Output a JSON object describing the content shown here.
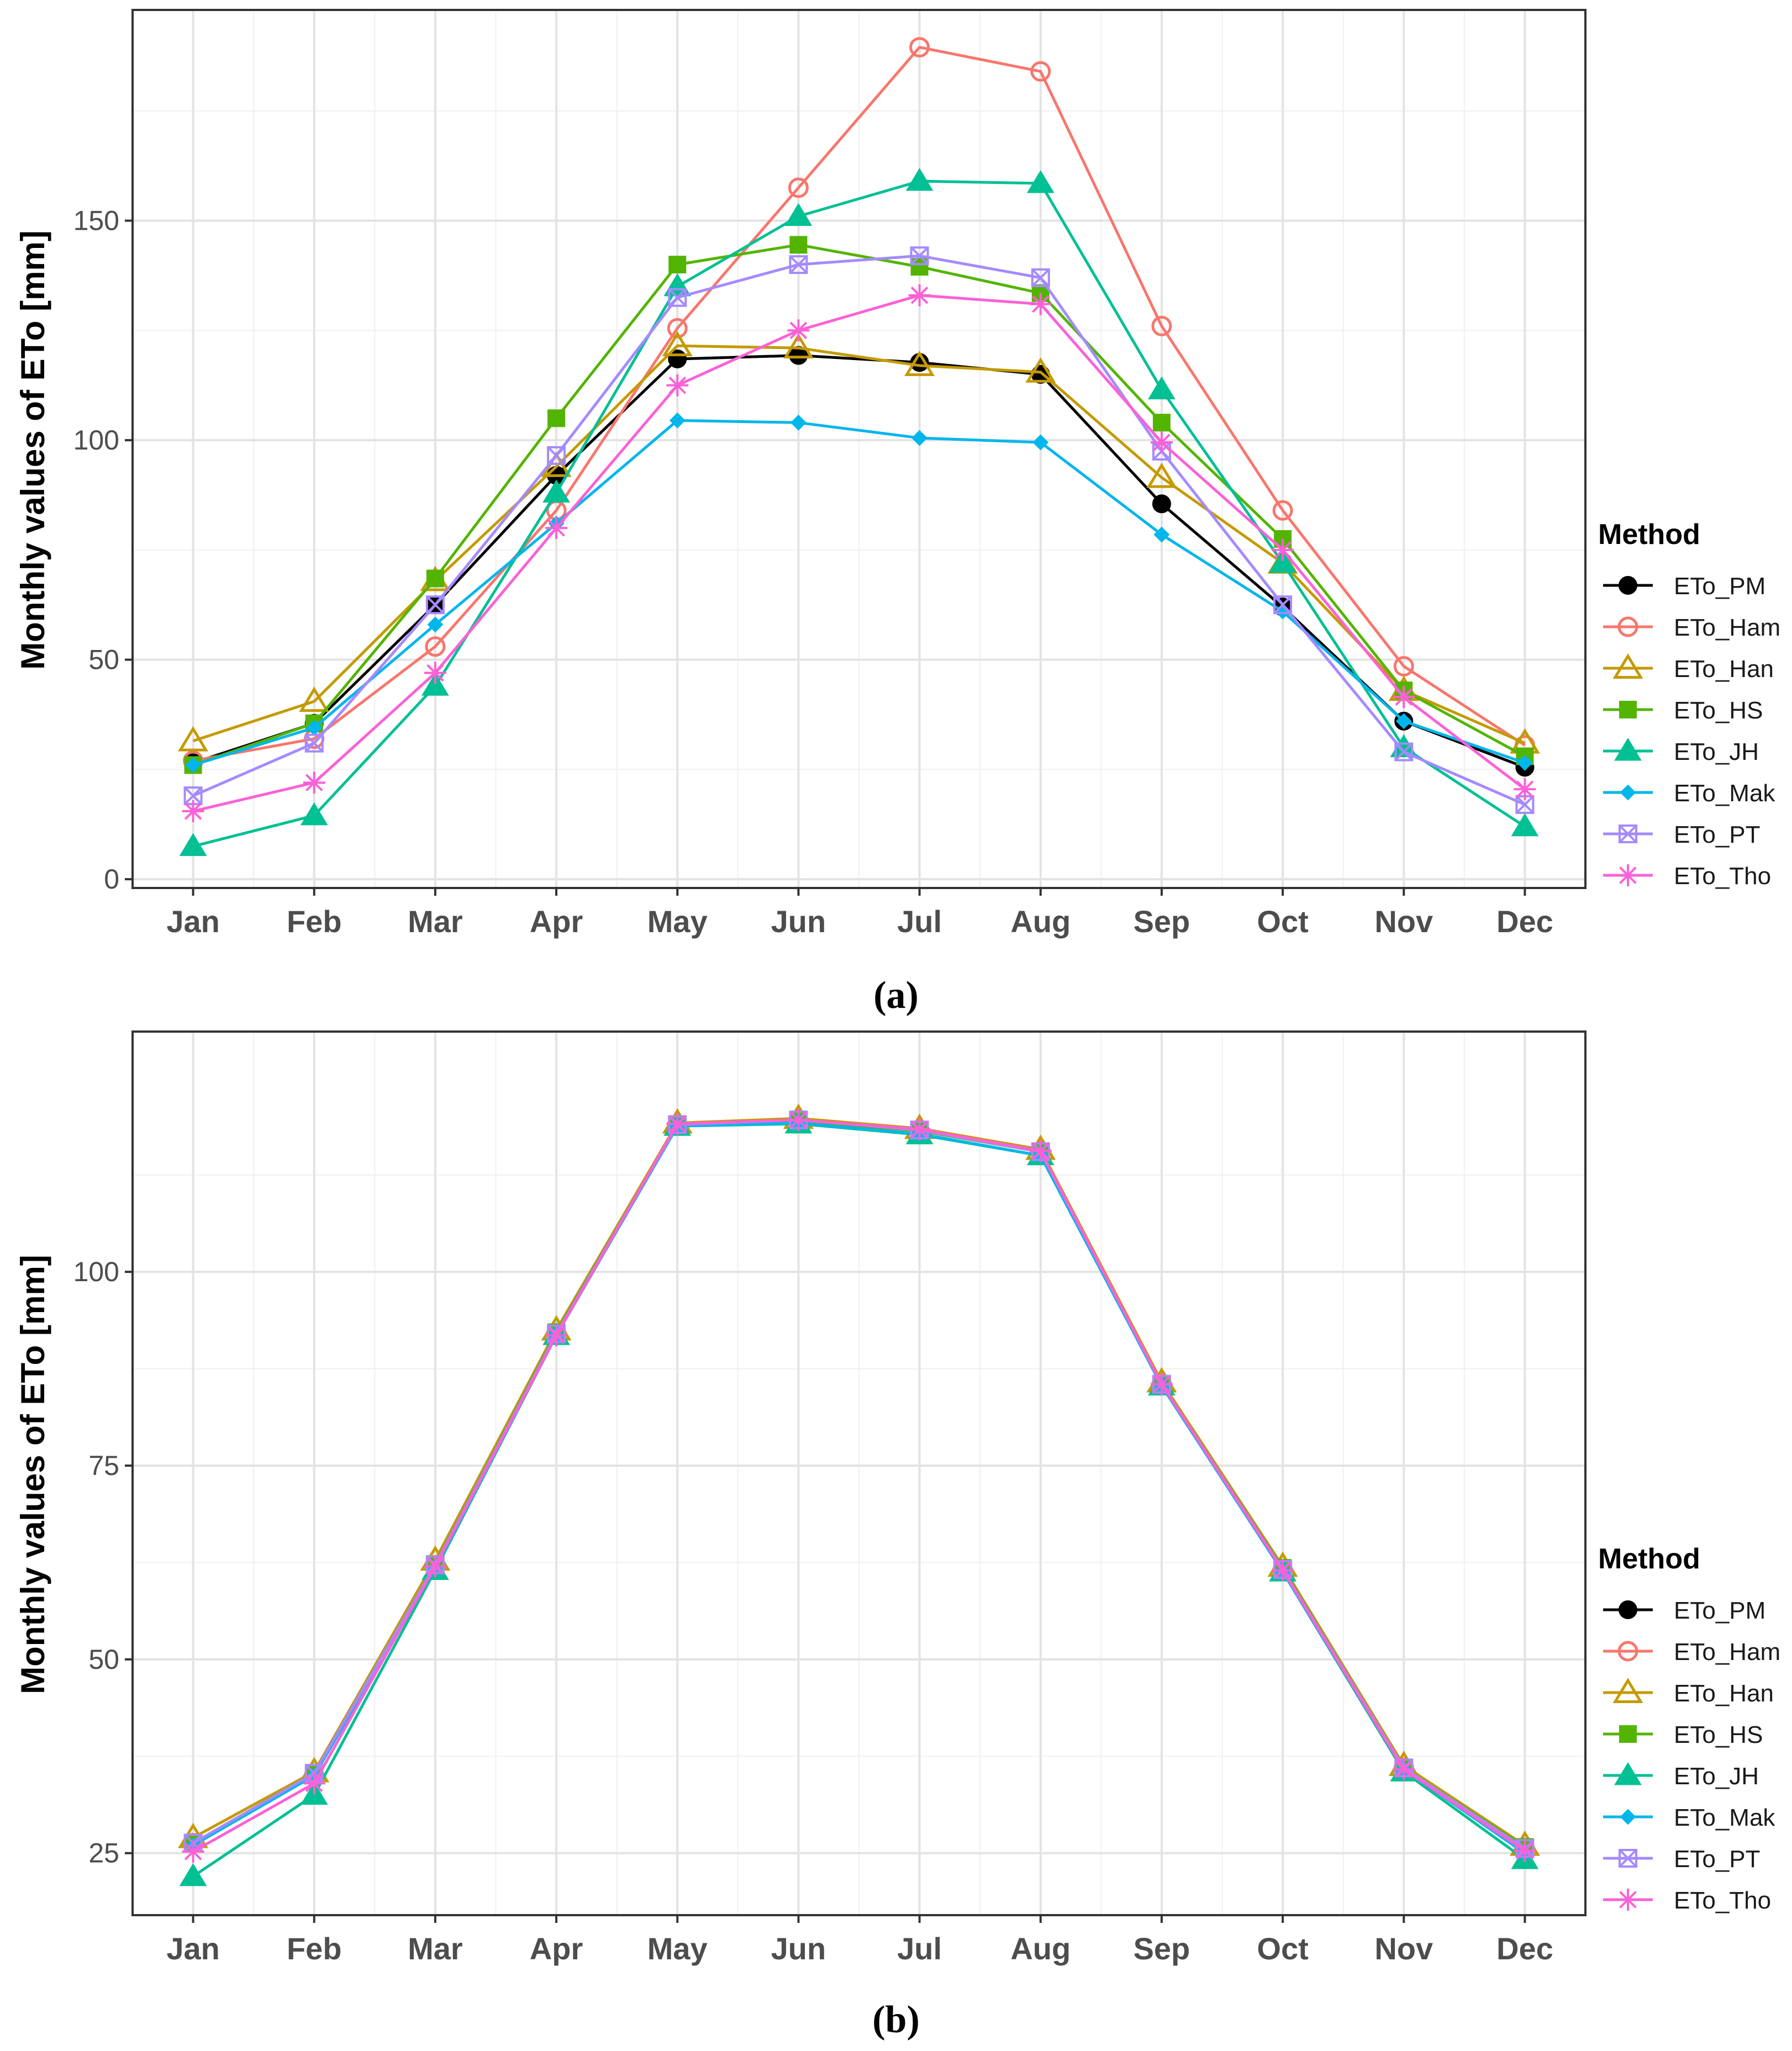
{
  "method_legend_title": "Method",
  "chart_data": [
    {
      "type": "line",
      "caption": "(a)",
      "ylabel": "Monthly values of ETo [mm]",
      "categories": [
        "Jan",
        "Feb",
        "Mar",
        "Apr",
        "May",
        "Jun",
        "Jul",
        "Aug",
        "Sep",
        "Oct",
        "Nov",
        "Dec"
      ],
      "ylim": [
        -2,
        198
      ],
      "yticks": [
        0,
        50,
        100,
        150
      ],
      "grid": true,
      "legend_position": "right",
      "legend_title": "Method",
      "series": [
        {
          "name": "ETo_PM",
          "color": "#000000",
          "marker": "circle-filled",
          "values": [
            26.5,
            35.5,
            62.5,
            92,
            118.5,
            119.3,
            117.7,
            115,
            85.5,
            62,
            36,
            25.5
          ]
        },
        {
          "name": "ETo_Ham",
          "color": "#F8766D",
          "marker": "circle-open",
          "values": [
            27,
            32,
            53,
            84,
            125.5,
            157.5,
            189.5,
            184,
            126,
            84,
            48.5,
            30.5
          ]
        },
        {
          "name": "ETo_Han",
          "color": "#C49A00",
          "marker": "triangle-open",
          "values": [
            31.5,
            40.5,
            68,
            94,
            121.5,
            121,
            117,
            115.5,
            91.5,
            72,
            43,
            31
          ]
        },
        {
          "name": "ETo_HS",
          "color": "#53B400",
          "marker": "square-filled",
          "values": [
            26,
            35.5,
            68.5,
            105,
            140,
            144.5,
            139.5,
            133.5,
            104,
            77.5,
            43,
            28
          ]
        },
        {
          "name": "ETo_JH",
          "color": "#00C094",
          "marker": "triangle-filled",
          "values": [
            7.5,
            14.5,
            44,
            88,
            135,
            151,
            159,
            158.5,
            111.5,
            72,
            30,
            12
          ]
        },
        {
          "name": "ETo_Mak",
          "color": "#00B6EB",
          "marker": "diamond-filled",
          "values": [
            26,
            34.5,
            58,
            81,
            104.5,
            104,
            100.5,
            99.5,
            78.5,
            61,
            36,
            26.5
          ]
        },
        {
          "name": "ETo_PT",
          "color": "#A58AFF",
          "marker": "square-cross",
          "values": [
            19,
            31,
            62.5,
            96.5,
            132.5,
            140,
            142,
            137,
            97.5,
            62.5,
            29,
            17
          ]
        },
        {
          "name": "ETo_Tho",
          "color": "#FB61D7",
          "marker": "asterisk",
          "values": [
            15.5,
            22,
            47,
            80,
            112.5,
            125,
            133,
            131,
            99.5,
            75,
            41.5,
            20.5
          ]
        }
      ]
    },
    {
      "type": "line",
      "caption": "(b)",
      "ylabel": "Monthly values of ETo [mm]",
      "categories": [
        "Jan",
        "Feb",
        "Mar",
        "Apr",
        "May",
        "Jun",
        "Jul",
        "Aug",
        "Sep",
        "Oct",
        "Nov",
        "Dec"
      ],
      "ylim": [
        17,
        131
      ],
      "yticks": [
        25,
        50,
        75,
        100
      ],
      "grid": true,
      "legend_position": "right",
      "legend_title": "Method",
      "series": [
        {
          "name": "ETo_PM",
          "color": "#000000",
          "marker": "circle-filled",
          "values": [
            26.2,
            35,
            62,
            92,
            119,
            119.5,
            118.2,
            115.5,
            85.5,
            61.5,
            36,
            25.5
          ]
        },
        {
          "name": "ETo_Ham",
          "color": "#F8766D",
          "marker": "circle-open",
          "values": [
            26.3,
            35,
            62,
            92,
            119,
            119.5,
            118.2,
            115.5,
            85.5,
            61.5,
            36,
            25.5
          ]
        },
        {
          "name": "ETo_Han",
          "color": "#C49A00",
          "marker": "triangle-open",
          "values": [
            27,
            35.5,
            62.8,
            92.5,
            119.2,
            119.8,
            118.5,
            115.8,
            85.8,
            62,
            36.3,
            26
          ]
        },
        {
          "name": "ETo_HS",
          "color": "#53B400",
          "marker": "square-filled",
          "values": [
            26.3,
            35.2,
            62.3,
            92.2,
            119,
            119.5,
            118.2,
            115.5,
            85.5,
            61.8,
            36,
            25.8
          ]
        },
        {
          "name": "ETo_JH",
          "color": "#00C094",
          "marker": "triangle-filled",
          "values": [
            22,
            32.5,
            61.5,
            91.8,
            118.8,
            119.1,
            117.7,
            115,
            85.3,
            61.3,
            35.5,
            24.2
          ]
        },
        {
          "name": "ETo_Mak",
          "color": "#00B6EB",
          "marker": "diamond-filled",
          "values": [
            26,
            35,
            61.8,
            91.8,
            118.8,
            119.2,
            117.8,
            115,
            85.3,
            61.3,
            35.8,
            25
          ]
        },
        {
          "name": "ETo_PT",
          "color": "#A58AFF",
          "marker": "square-cross",
          "values": [
            26.3,
            35.3,
            62.2,
            92,
            119,
            119.6,
            118.3,
            115.5,
            85.5,
            61.6,
            36,
            25.6
          ]
        },
        {
          "name": "ETo_Tho",
          "color": "#FB61D7",
          "marker": "asterisk",
          "values": [
            25.2,
            34,
            62,
            91.8,
            119.1,
            119.6,
            118.4,
            115.6,
            85.5,
            61.5,
            35.8,
            25.3
          ]
        }
      ]
    }
  ]
}
